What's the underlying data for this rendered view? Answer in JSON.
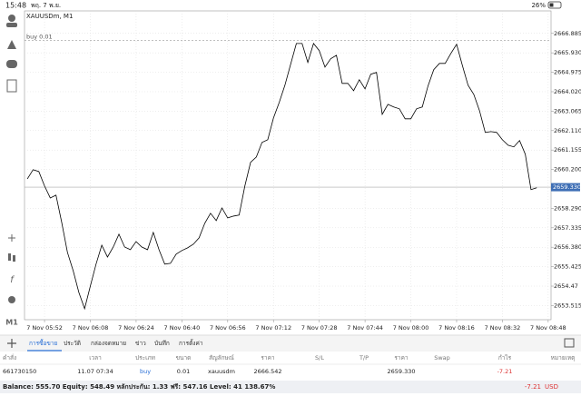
{
  "status_bar": {
    "time": "15:48",
    "date": "พฤ. 7 พ.ย.",
    "battery": "26%"
  },
  "chart_data": {
    "type": "line",
    "title": "XAUUSDm, M1",
    "categories": [
      null,
      null,
      null,
      "7 Nov 05:52",
      null,
      null,
      null,
      null,
      null,
      null,
      null,
      "7 Nov 06:08",
      null,
      null,
      null,
      null,
      null,
      null,
      null,
      "7 Nov 06:24",
      null,
      null,
      null,
      null,
      null,
      null,
      null,
      "7 Nov 06:40",
      null,
      null,
      null,
      null,
      null,
      null,
      null,
      "7 Nov 06:56",
      null,
      null,
      null,
      null,
      null,
      null,
      null,
      "7 Nov 07:12",
      null,
      null,
      null,
      null,
      null,
      null,
      null,
      "7 Nov 07:28",
      null,
      null,
      null,
      null,
      null,
      null,
      null,
      "7 Nov 07:44",
      null,
      null,
      null,
      null,
      null,
      null,
      null,
      "7 Nov 08:00",
      null,
      null,
      null,
      null,
      null,
      null,
      null,
      "7 Nov 08:16",
      null,
      null,
      null,
      null,
      null,
      null,
      null,
      "7 Nov 08:32",
      null,
      null,
      null,
      null,
      null,
      null,
      null,
      "7 Nov 08:48"
    ],
    "values": [
      2659.74,
      2660.19,
      2660.1,
      2659.39,
      2658.8,
      2658.94,
      2657.6,
      2656.13,
      2655.23,
      2654.16,
      2653.36,
      2654.47,
      2655.55,
      2656.48,
      2655.9,
      2656.39,
      2657.02,
      2656.39,
      2656.26,
      2656.66,
      2656.39,
      2656.26,
      2657.11,
      2656.26,
      2655.55,
      2655.59,
      2656.04,
      2656.22,
      2656.35,
      2656.53,
      2656.84,
      2657.56,
      2658.05,
      2657.69,
      2658.31,
      2657.82,
      2657.91,
      2657.96,
      2659.39,
      2660.55,
      2660.81,
      2661.53,
      2661.66,
      2662.73,
      2663.49,
      2664.34,
      2665.37,
      2666.39,
      2666.39,
      2665.46,
      2666.39,
      2666.04,
      2665.23,
      2665.64,
      2665.81,
      2664.43,
      2664.43,
      2664.07,
      2664.61,
      2664.16,
      2664.88,
      2664.97,
      2662.91,
      2663.4,
      2663.27,
      2663.18,
      2662.69,
      2662.69,
      2663.18,
      2663.27,
      2664.3,
      2665.1,
      2665.41,
      2665.41,
      2665.9,
      2666.35,
      2665.32,
      2664.34,
      2663.89,
      2663.09,
      2662.02,
      2662.06,
      2662.02,
      2661.66,
      2661.39,
      2661.31,
      2661.62,
      2660.95,
      2659.21,
      2659.3,
      null,
      null
    ],
    "color": "#000000",
    "ylim": [
      2652.82,
      2667.99
    ],
    "yticks": [
      2666.885,
      {
        "value": 2665.93,
        "label": "2665.930"
      },
      2664.975,
      {
        "value": 2664.02,
        "label": "2664.020"
      },
      2663.065,
      {
        "value": 2662.11,
        "label": "2662.110"
      },
      2661.155,
      {
        "value": 2660.2,
        "label": "2660.200"
      },
      {
        "value": 2658.29,
        "label": "2658.290"
      },
      2657.335,
      {
        "value": 2656.38,
        "label": "2656.380"
      },
      2655.425,
      2654.47,
      2653.515
    ],
    "grid": true,
    "price_line": {
      "value": 2659.33,
      "label": "2659.330"
    },
    "order_line": {
      "value": 2666.542,
      "label": "buy 0.01"
    }
  },
  "sidebar": {
    "timeframe": "M1"
  },
  "tabs": [
    "การซื้อขาย",
    "ประวัติ",
    "กล่องจดหมาย",
    "ข่าว",
    "บันทึก",
    "การตั้งค่า"
  ],
  "table": {
    "headers": [
      "คำสั่ง",
      "เวลา",
      "ประเภท",
      "ขนาด",
      "สัญลักษณ์",
      "ราคา",
      "S/L",
      "T/P",
      "ราคา",
      "Swap",
      "กำไร",
      "หมายเหตุ"
    ],
    "rows": [
      [
        "661730150",
        "11.07 07:34",
        "buy",
        "0.01",
        "xauusdm",
        "2666.542",
        null,
        null,
        "2659.330",
        null,
        "-7.21",
        null
      ]
    ]
  },
  "footer": {
    "summary": "Balance: 555.70 Equity: 548.49 หลักประกัน: 1.33 ฟรี: 547.16 Level: 41 138.67%",
    "profit": "-7.21",
    "currency": "USD"
  }
}
